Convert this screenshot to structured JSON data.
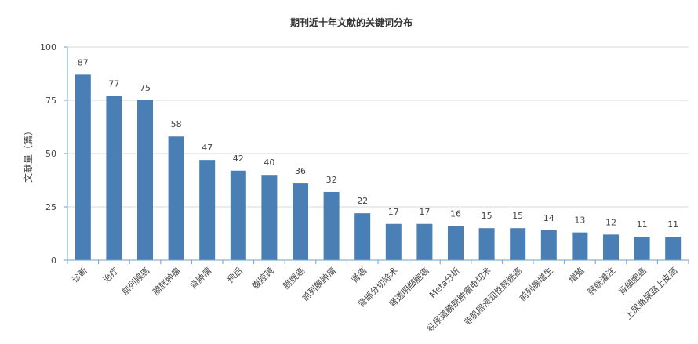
{
  "chart_data": {
    "type": "bar",
    "title": "期刊近十年文献的关键词分布",
    "ylabel": "文献量（篇）",
    "xlabel": "",
    "ylim": [
      0,
      100
    ],
    "yticks": [
      0,
      25,
      50,
      75,
      100
    ],
    "grid": true,
    "bar_color": "#4a7fb5",
    "axis_color": "#6aa3c8",
    "categories": [
      "诊断",
      "治疗",
      "前列腺癌",
      "膀胱肿瘤",
      "肾肿瘤",
      "预后",
      "腹腔镜",
      "膀胱癌",
      "前列腺肿瘤",
      "肾癌",
      "肾部分切除术",
      "肾透明细胞癌",
      "Meta分析",
      "经尿道膀胱肿瘤电切术",
      "非肌层浸润性膀胱癌",
      "前列腺增生",
      "增殖",
      "膀胱灌注",
      "肾细胞癌",
      "上尿路尿路上皮癌"
    ],
    "values": [
      87,
      77,
      75,
      58,
      47,
      42,
      40,
      36,
      32,
      22,
      17,
      17,
      16,
      15,
      15,
      14,
      13,
      12,
      11,
      11
    ]
  }
}
